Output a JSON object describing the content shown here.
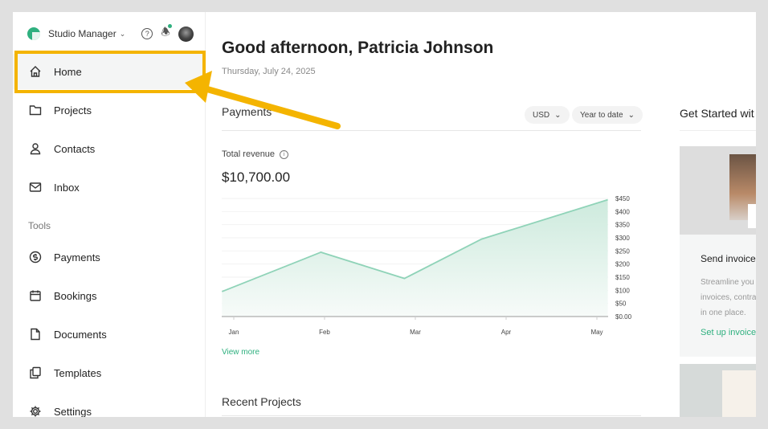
{
  "header": {
    "workspace": "Studio Manager",
    "icons": [
      "help-icon",
      "bell-icon",
      "avatar"
    ]
  },
  "sidebar": {
    "items": [
      {
        "label": "Home",
        "icon": "home-icon",
        "active": true
      },
      {
        "label": "Projects",
        "icon": "folder-icon"
      },
      {
        "label": "Contacts",
        "icon": "person-icon"
      },
      {
        "label": "Inbox",
        "icon": "mail-icon"
      }
    ],
    "tools_label": "Tools",
    "tools": [
      {
        "label": "Payments",
        "icon": "dollar-icon"
      },
      {
        "label": "Bookings",
        "icon": "calendar-icon"
      },
      {
        "label": "Documents",
        "icon": "document-icon"
      },
      {
        "label": "Templates",
        "icon": "copy-icon"
      },
      {
        "label": "Settings",
        "icon": "gear-icon"
      }
    ]
  },
  "main": {
    "greeting": "Good afternoon, Patricia Johnson",
    "date": "Thursday, July 24, 2025",
    "payments": {
      "title": "Payments",
      "currency": "USD",
      "period": "Year to date",
      "total_label": "Total revenue",
      "total": "$10,700.00",
      "view_more": "View more"
    },
    "recent_projects": "Recent Projects"
  },
  "get_started": {
    "title": "Get Started wit",
    "card": {
      "title": "Send invoice",
      "desc": [
        "Streamline you",
        "invoices, contra",
        "in one place."
      ],
      "link": "Set up invoice"
    }
  },
  "annotation": {
    "highlight_color": "#f4b400"
  },
  "chart_data": {
    "type": "area",
    "x_ticks": [
      "Jan",
      "Feb",
      "Mar",
      "Apr",
      "May"
    ],
    "y_ticks": [
      "$0.00",
      "$50",
      "$100",
      "$150",
      "$200",
      "$250",
      "$300",
      "$350",
      "$400",
      "$450"
    ],
    "ylim": [
      0,
      450
    ],
    "y_axis": "right",
    "grid": true,
    "color": "#8fd3b8",
    "points": [
      {
        "x": -0.13,
        "y": 95
      },
      {
        "x": 0.96,
        "y": 245
      },
      {
        "x": 1.88,
        "y": 145
      },
      {
        "x": 2.73,
        "y": 295
      },
      {
        "x": 4.12,
        "y": 445
      }
    ]
  }
}
